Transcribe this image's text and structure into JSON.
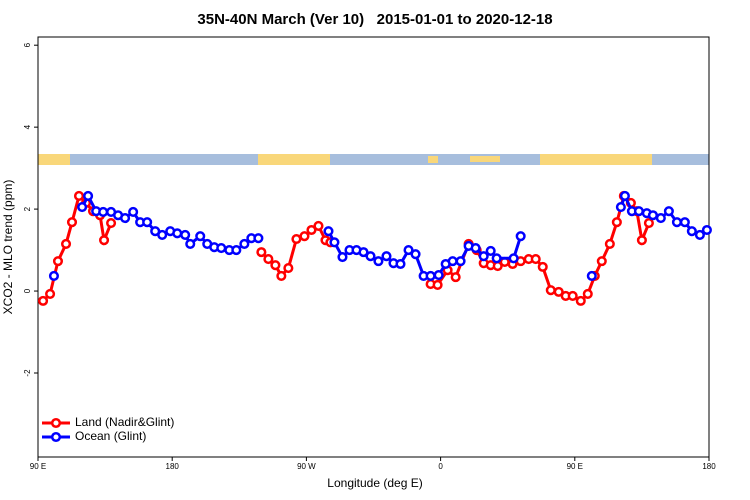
{
  "chart_data": {
    "type": "line",
    "title": "35N-40N March (Ver 10)   2015-01-01 to 2020-12-18",
    "x_label": "Longitude (deg E)",
    "y_label": "XCO2 - MLO trend (ppm)",
    "xlim": [
      90,
      540
    ],
    "xticks": [
      {
        "value": 90,
        "label": "90 E"
      },
      {
        "value": 180,
        "label": "180"
      },
      {
        "value": 270,
        "label": "90 W"
      },
      {
        "value": 360,
        "label": "0"
      },
      {
        "value": 450,
        "label": "90 E"
      },
      {
        "value": 540,
        "label": "180"
      }
    ],
    "ylim": [
      -4.05,
      6.2
    ],
    "yticks": [
      -2,
      0,
      2,
      4,
      6
    ],
    "legend": "bottom-left",
    "series": [
      {
        "name": "Land (Nadir&Glint)",
        "color": "#ff0000",
        "x": [
          93.4,
          98.1,
          103.4,
          108.8,
          112.8,
          117.5,
          122.2,
          126.9,
          131.6,
          134.3,
          139.0,
          null,
          239.8,
          244.5,
          249.2,
          253.2,
          257.9,
          263.3,
          268.7,
          273.4,
          278.1,
          282.8,
          286.1,
          null,
          353.3,
          358.0,
          364.7,
          370.1,
          378.8,
          384.2,
          388.9,
          393.6,
          398.3,
          403.0,
          408.3,
          413.7,
          419.1,
          423.8,
          428.5,
          433.9,
          439.2,
          443.9,
          448.6,
          454.0,
          458.7,
          463.4,
          468.1,
          473.5,
          478.2,
          482.9,
          487.6,
          491.6,
          495.0,
          499.7
        ],
        "values": [
          -0.24,
          -0.07,
          0.73,
          1.15,
          1.68,
          2.32,
          2.15,
          1.95,
          1.85,
          1.24,
          1.66,
          null,
          0.95,
          0.78,
          0.63,
          0.37,
          0.56,
          1.27,
          1.34,
          1.49,
          1.59,
          1.24,
          1.19,
          null,
          0.17,
          0.15,
          0.51,
          0.34,
          1.15,
          1.0,
          0.68,
          0.63,
          0.61,
          0.71,
          0.66,
          0.73,
          0.78,
          0.78,
          0.59,
          0.02,
          -0.02,
          -0.12,
          -0.12,
          -0.24,
          -0.07,
          0.37,
          0.73,
          1.15,
          1.68,
          2.32,
          2.15,
          1.95,
          1.24,
          1.66
        ]
      },
      {
        "name": "Ocean (Glint)",
        "color": "#0000ff",
        "x": [
          100.7,
          null,
          119.6,
          123.6,
          129.0,
          133.7,
          139.0,
          143.7,
          148.4,
          153.8,
          158.5,
          163.2,
          168.6,
          173.3,
          178.7,
          183.4,
          188.7,
          192.1,
          198.8,
          203.5,
          208.2,
          212.9,
          218.3,
          223.0,
          228.4,
          233.1,
          237.8,
          null,
          284.8,
          288.8,
          294.2,
          298.9,
          303.6,
          308.3,
          313.0,
          318.3,
          323.7,
          328.4,
          333.1,
          338.5,
          343.2,
          348.6,
          353.3,
          358.7,
          363.4,
          368.1,
          373.4,
          378.8,
          383.5,
          388.9,
          393.6,
          397.6,
          409.0,
          413.7,
          null,
          461.4,
          null,
          480.9,
          483.6,
          488.3,
          493.0,
          498.3,
          502.4,
          507.7,
          513.1,
          518.5,
          523.8,
          528.5,
          533.9,
          538.6
        ],
        "values": [
          0.37,
          null,
          2.05,
          2.32,
          1.95,
          1.93,
          1.93,
          1.85,
          1.78,
          1.93,
          1.68,
          1.68,
          1.46,
          1.37,
          1.46,
          1.41,
          1.37,
          1.15,
          1.34,
          1.15,
          1.07,
          1.05,
          1.0,
          1.0,
          1.15,
          1.29,
          1.29,
          null,
          1.46,
          1.19,
          0.83,
          1.0,
          1.0,
          0.95,
          0.85,
          0.73,
          0.85,
          0.68,
          0.66,
          1.0,
          0.9,
          0.37,
          0.37,
          0.39,
          0.66,
          0.73,
          0.73,
          1.1,
          1.05,
          0.85,
          0.98,
          0.8,
          0.8,
          1.34,
          null,
          0.37,
          null,
          2.05,
          2.32,
          1.95,
          1.95,
          1.9,
          1.85,
          1.78,
          1.95,
          1.68,
          1.68,
          1.46,
          1.37,
          1.49
        ]
      }
    ]
  }
}
